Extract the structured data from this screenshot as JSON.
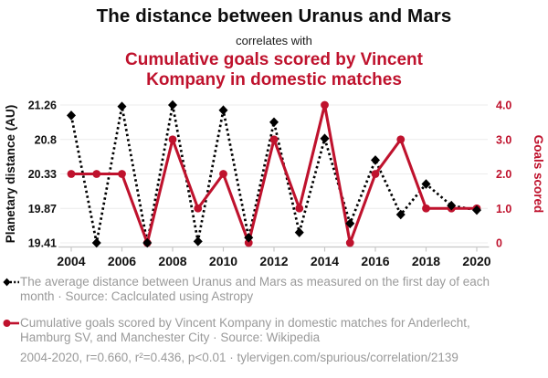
{
  "header": {
    "title": "The distance between Uranus and Mars",
    "connector": "correlates with",
    "subtitle_lines": [
      "Cumulative goals scored by Vincent",
      "Kompany in domestic matches"
    ]
  },
  "colors": {
    "accent_red": "#bf122d",
    "series_black": "#000000",
    "grid": "#ececec",
    "axis": "#c8c8c8",
    "tick_text": "#111111",
    "footer_text": "#9a9a9a"
  },
  "chart_data": {
    "type": "line",
    "x": [
      2004,
      2005,
      2006,
      2007,
      2008,
      2009,
      2010,
      2011,
      2012,
      2013,
      2014,
      2015,
      2016,
      2017,
      2018,
      2019,
      2020
    ],
    "x_tick_labels": [
      "2004",
      "2006",
      "2008",
      "2010",
      "2012",
      "2014",
      "2016",
      "2018",
      "2020"
    ],
    "x_tick_years": [
      2004,
      2006,
      2008,
      2010,
      2012,
      2014,
      2016,
      2018,
      2020
    ],
    "series": [
      {
        "name": "The distance between Uranus and Mars",
        "axis": "left",
        "marker": "diamond",
        "line_style": "dotted",
        "color": "#000000",
        "values": [
          21.12,
          19.41,
          21.24,
          19.41,
          21.26,
          19.43,
          21.19,
          19.48,
          21.03,
          19.55,
          20.81,
          19.67,
          20.52,
          19.79,
          20.2,
          19.91,
          19.85
        ]
      },
      {
        "name": "Cumulative goals scored by Vincent Kompany in domestic matches",
        "axis": "right",
        "marker": "circle",
        "line_style": "solid",
        "color": "#bf122d",
        "values": [
          2,
          2,
          2,
          0,
          3,
          1,
          2,
          0,
          3,
          1,
          4,
          0,
          2,
          3,
          1,
          1,
          1
        ]
      }
    ],
    "left_axis": {
      "label": "Planetary distance (AU)",
      "tick_labels": [
        "21.26",
        "20.8",
        "20.33",
        "19.87",
        "19.41"
      ],
      "min": 19.41,
      "max": 21.26
    },
    "right_axis": {
      "label": "Goals scored",
      "tick_labels": [
        "4.0",
        "3.0",
        "2.0",
        "1.0",
        "0"
      ],
      "min": 0,
      "max": 4
    },
    "grid": true,
    "legend_position": "below"
  },
  "footer": {
    "legend1_lines": [
      "The average distance between Uranus and Mars as measured on the first day of each",
      "month · Source: Caclculated using Astropy"
    ],
    "legend2_lines": [
      "Cumulative goals scored by Vincent Kompany in domestic matches for Anderlecht,",
      "Hamburg SV, and Manchester City · Source: Wikipedia"
    ],
    "stats": "2004-2020, r=0.660, r²=0.436, p<0.01 · tylervigen.com/spurious/correlation/2139"
  }
}
